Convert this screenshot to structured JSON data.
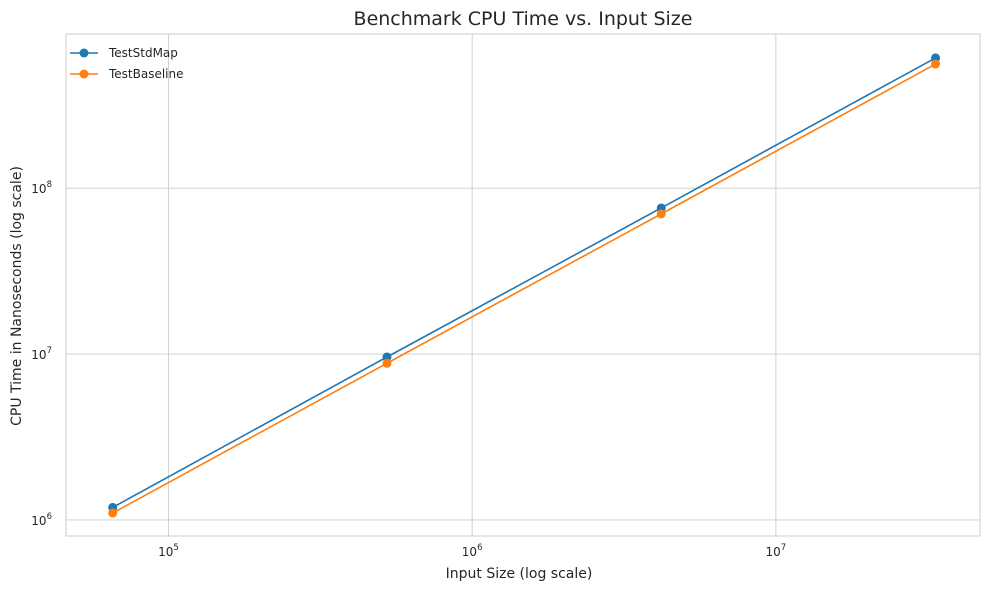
{
  "chart_data": {
    "type": "line",
    "title": "Benchmark CPU Time vs. Input Size",
    "xlabel": "Input Size (log scale)",
    "ylabel": "CPU Time in Nanoseconds (log scale)",
    "xscale": "log",
    "yscale": "log",
    "xlim": [
      46000,
      47000000
    ],
    "ylim": [
      800000,
      850000000
    ],
    "x_ticks": [
      {
        "base": "10",
        "exp": "5",
        "value": 100000
      },
      {
        "base": "10",
        "exp": "6",
        "value": 1000000
      },
      {
        "base": "10",
        "exp": "7",
        "value": 10000000
      }
    ],
    "y_ticks": [
      {
        "base": "10",
        "exp": "6",
        "value": 1000000
      },
      {
        "base": "10",
        "exp": "7",
        "value": 10000000
      },
      {
        "base": "10",
        "exp": "8",
        "value": 100000000
      }
    ],
    "grid": true,
    "legend_position": "top-left",
    "x": [
      65536,
      524288,
      4194304,
      33554432
    ],
    "series": [
      {
        "name": "TestStdMap",
        "color": "#1f77b4",
        "values": [
          1190000,
          9600000,
          76000000,
          610000000
        ]
      },
      {
        "name": "TestBaseline",
        "color": "#ff7f0e",
        "values": [
          1100000,
          8800000,
          70000000,
          560000000
        ]
      }
    ]
  }
}
